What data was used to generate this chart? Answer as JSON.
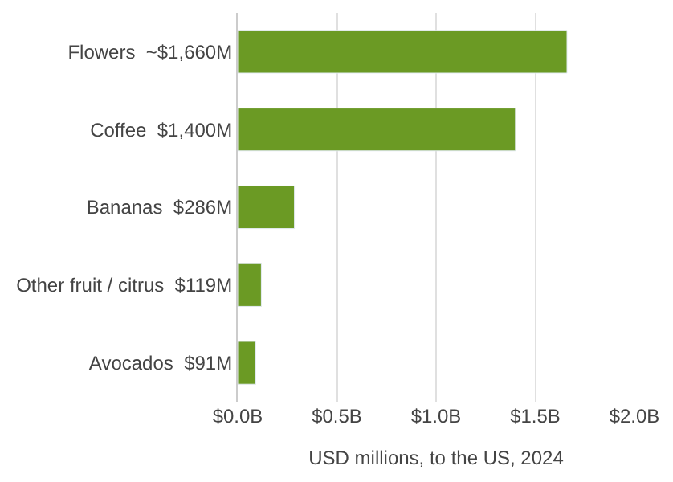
{
  "chart_data": {
    "type": "bar",
    "orientation": "horizontal",
    "categories": [
      "Flowers  ~$1,660M",
      "Coffee  $1,400M",
      "Bananas  $286M",
      "Other fruit / citrus  $119M",
      "Avocados  $91M"
    ],
    "values": [
      1.66,
      1.4,
      0.286,
      0.119,
      0.091
    ],
    "color": "#6b9a24",
    "xlabel": "USD millions, to the US, 2024",
    "xlim": [
      0,
      2
    ],
    "xticks": [
      {
        "value": 0,
        "label": "$0.0B"
      },
      {
        "value": 0.5,
        "label": "$0.5B"
      },
      {
        "value": 1,
        "label": "$1.0B"
      },
      {
        "value": 1.5,
        "label": "$1.5B"
      },
      {
        "value": 2,
        "label": "$2.0B"
      }
    ],
    "grid": "x"
  }
}
